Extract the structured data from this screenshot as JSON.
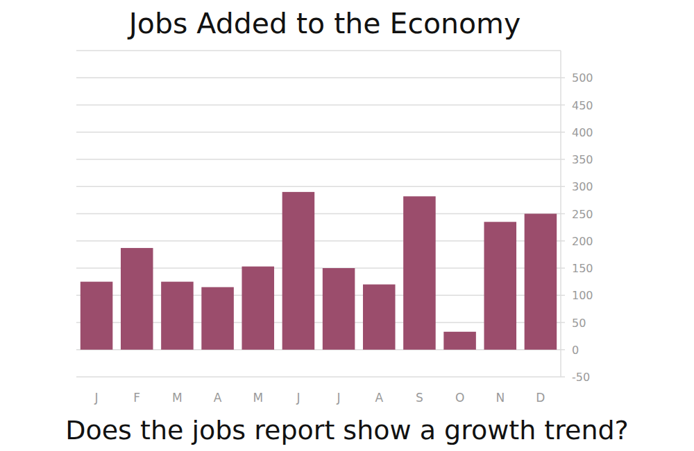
{
  "chart_data": {
    "type": "bar",
    "title": "Jobs Added to the Economy",
    "annotation": "Does the jobs report show a growth trend?",
    "categories": [
      "J",
      "F",
      "M",
      "A",
      "M",
      "J",
      "J",
      "A",
      "S",
      "O",
      "N",
      "D"
    ],
    "values": [
      125,
      187,
      125,
      115,
      153,
      290,
      150,
      120,
      282,
      33,
      235,
      250
    ],
    "color": "#9b4d6c",
    "ylim": [
      -50,
      550
    ],
    "yticks": [
      -50,
      0,
      50,
      100,
      150,
      200,
      250,
      300,
      350,
      400,
      450,
      500
    ],
    "grid": true
  }
}
